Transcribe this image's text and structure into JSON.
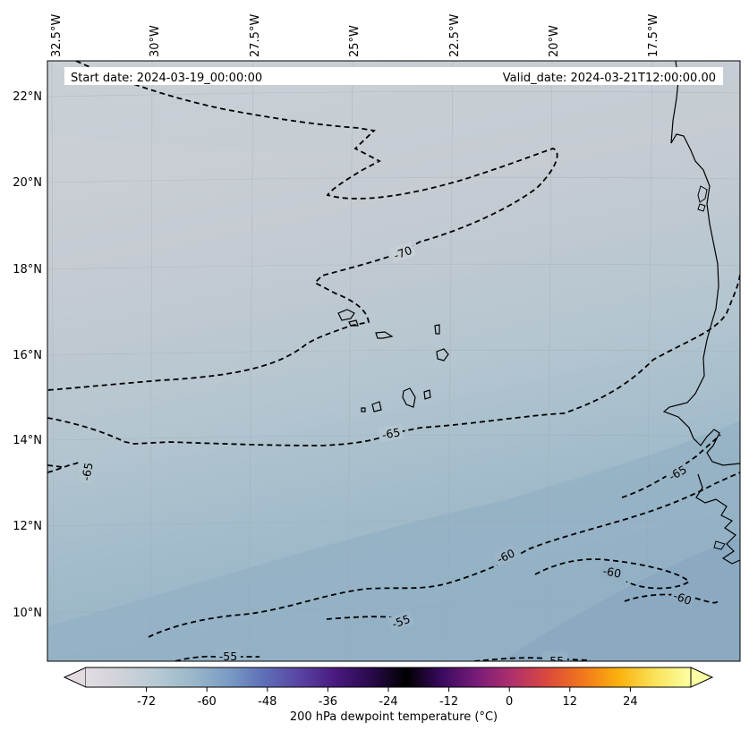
{
  "map": {
    "start_date": "Start date: 2024-03-19_00:00:00",
    "valid_date": "Valid_date: 2024-03-21T12:00:00.00",
    "lon_labels": [
      "32.5°W",
      "30°W",
      "27.5°W",
      "25°W",
      "22.5°W",
      "20°W",
      "17.5°W"
    ],
    "lat_labels": [
      "22°N",
      "20°N",
      "18°N",
      "16°N",
      "14°N",
      "12°N",
      "10°N"
    ],
    "contour_labels": [
      "-70",
      "-65",
      "-65",
      "-65",
      "-60",
      "-60",
      "-60",
      "-55",
      "-55",
      "-55"
    ],
    "field_colors": [
      "#c8cdd3",
      "#c5cbd2",
      "#b9c8d2",
      "#a8bfcc",
      "#98b4c6",
      "#8aa9c1"
    ]
  },
  "colorbar": {
    "label": "200 hPa dewpoint temperature ($^\\circ$C)",
    "label_text": "200 hPa dewpoint temperature (°C)",
    "ticks": [
      "-72",
      "-60",
      "-48",
      "-36",
      "-24",
      "-12",
      "0",
      "12",
      "24"
    ],
    "tick_values": [
      -72,
      -60,
      -48,
      -36,
      -24,
      -12,
      0,
      12,
      24
    ],
    "range": [
      -84,
      36
    ],
    "colormap": "dewpoint",
    "stops": [
      "#e2dce2",
      "#cfd2d9",
      "#b6cad4",
      "#9ab7c9",
      "#7a9cc4",
      "#5e6fb6",
      "#5944a3",
      "#4a1a80",
      "#2a0a4d",
      "#000000",
      "#3a0a60",
      "#7a1d7a",
      "#b0306b",
      "#dc4a3c",
      "#f2791a",
      "#fbb30d",
      "#f9e35a",
      "#fcffa4"
    ]
  }
}
